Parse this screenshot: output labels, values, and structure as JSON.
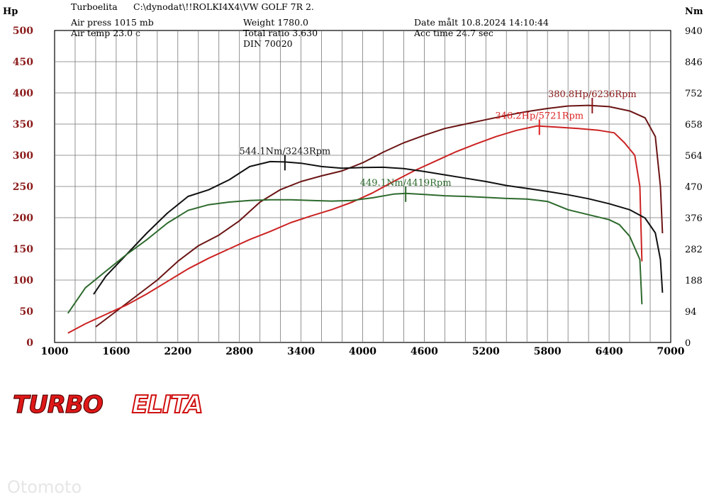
{
  "header": {
    "app_name": "Turboelita",
    "file_path": "C:\\dynodat\\!!ROLKI4X4\\VW GOLF 7R 2.",
    "air_press": "Air press  1015 mb",
    "air_temp": "Air temp  23.0 c",
    "weight": "Weight  1780.0",
    "total_ratio": "Total ratio 3.630",
    "din": "DIN 70020",
    "date": "Date målt 10.8.2024 14:10:44",
    "acc_time": "Acc time  24.7 sec"
  },
  "logo": {
    "part1": "TURBO",
    "part2": "ELITA"
  },
  "watermark": "Otomoto",
  "chart_data": {
    "type": "line",
    "xlabel": "",
    "ylabel_left": "Hp",
    "ylabel_right": "Nm",
    "xlim": [
      1000,
      7000
    ],
    "ylim_left": [
      0,
      500
    ],
    "ylim_right": [
      0,
      940
    ],
    "x_ticks": [
      "1000",
      "1600",
      "2200",
      "2800",
      "3400",
      "4000",
      "4600",
      "5200",
      "5800",
      "6400",
      "7000"
    ],
    "y_ticks_left": [
      "0",
      "50",
      "100",
      "150",
      "200",
      "250",
      "300",
      "350",
      "400",
      "450",
      "500"
    ],
    "y_ticks_right": [
      "0",
      "94",
      "188",
      "282",
      "376",
      "470",
      "564",
      "658",
      "752",
      "846",
      "940"
    ],
    "grid": true,
    "series": [
      {
        "name": "",
        "axis": "left",
        "color": "#6b1414",
        "points": [
          [
            1400,
            25
          ],
          [
            1600,
            50
          ],
          [
            1800,
            75
          ],
          [
            2000,
            100
          ],
          [
            2200,
            130
          ],
          [
            2400,
            155
          ],
          [
            2600,
            172
          ],
          [
            2800,
            195
          ],
          [
            3000,
            225
          ],
          [
            3200,
            245
          ],
          [
            3400,
            258
          ],
          [
            3600,
            267
          ],
          [
            3800,
            275
          ],
          [
            4000,
            288
          ],
          [
            4200,
            305
          ],
          [
            4400,
            320
          ],
          [
            4600,
            332
          ],
          [
            4800,
            343
          ],
          [
            5000,
            350
          ],
          [
            5200,
            357
          ],
          [
            5400,
            364
          ],
          [
            5600,
            370
          ],
          [
            5800,
            375
          ],
          [
            6000,
            379
          ],
          [
            6200,
            380
          ],
          [
            6400,
            378
          ],
          [
            6600,
            371
          ],
          [
            6750,
            360
          ],
          [
            6850,
            330
          ],
          [
            6900,
            250
          ],
          [
            6920,
            175
          ]
        ]
      },
      {
        "name": "",
        "axis": "left",
        "color": "#cc2222",
        "points": [
          [
            1130,
            15
          ],
          [
            1300,
            30
          ],
          [
            1500,
            45
          ],
          [
            1700,
            60
          ],
          [
            1900,
            78
          ],
          [
            2100,
            98
          ],
          [
            2300,
            118
          ],
          [
            2500,
            135
          ],
          [
            2700,
            150
          ],
          [
            2900,
            165
          ],
          [
            3100,
            178
          ],
          [
            3300,
            192
          ],
          [
            3500,
            203
          ],
          [
            3700,
            213
          ],
          [
            3900,
            225
          ],
          [
            4100,
            240
          ],
          [
            4300,
            258
          ],
          [
            4500,
            275
          ],
          [
            4700,
            290
          ],
          [
            4900,
            305
          ],
          [
            5100,
            318
          ],
          [
            5300,
            330
          ],
          [
            5500,
            340
          ],
          [
            5700,
            347
          ],
          [
            5900,
            345
          ],
          [
            6100,
            343
          ],
          [
            6300,
            340
          ],
          [
            6450,
            336
          ],
          [
            6550,
            320
          ],
          [
            6650,
            300
          ],
          [
            6700,
            250
          ],
          [
            6720,
            130
          ]
        ]
      },
      {
        "name": "",
        "axis": "right",
        "color": "#111111",
        "points": [
          [
            1380,
            145
          ],
          [
            1500,
            200
          ],
          [
            1700,
            265
          ],
          [
            1900,
            330
          ],
          [
            2100,
            390
          ],
          [
            2300,
            440
          ],
          [
            2500,
            460
          ],
          [
            2700,
            490
          ],
          [
            2900,
            530
          ],
          [
            3100,
            545
          ],
          [
            3243,
            544
          ],
          [
            3400,
            540
          ],
          [
            3600,
            530
          ],
          [
            3800,
            525
          ],
          [
            4000,
            527
          ],
          [
            4200,
            528
          ],
          [
            4400,
            524
          ],
          [
            4600,
            515
          ],
          [
            4800,
            505
          ],
          [
            5000,
            495
          ],
          [
            5200,
            485
          ],
          [
            5400,
            473
          ],
          [
            5600,
            464
          ],
          [
            5800,
            455
          ],
          [
            6000,
            445
          ],
          [
            6200,
            433
          ],
          [
            6400,
            418
          ],
          [
            6600,
            400
          ],
          [
            6750,
            375
          ],
          [
            6850,
            330
          ],
          [
            6900,
            250
          ],
          [
            6920,
            150
          ]
        ]
      },
      {
        "name": "",
        "axis": "right",
        "color": "#2d6a2d",
        "points": [
          [
            1130,
            88
          ],
          [
            1300,
            165
          ],
          [
            1500,
            215
          ],
          [
            1700,
            265
          ],
          [
            1900,
            310
          ],
          [
            2100,
            360
          ],
          [
            2300,
            398
          ],
          [
            2500,
            415
          ],
          [
            2700,
            423
          ],
          [
            2900,
            428
          ],
          [
            3100,
            430
          ],
          [
            3300,
            430
          ],
          [
            3500,
            428
          ],
          [
            3700,
            426
          ],
          [
            3900,
            428
          ],
          [
            4100,
            436
          ],
          [
            4300,
            447
          ],
          [
            4419,
            449
          ],
          [
            4600,
            446
          ],
          [
            4800,
            442
          ],
          [
            5000,
            440
          ],
          [
            5200,
            437
          ],
          [
            5400,
            434
          ],
          [
            5600,
            432
          ],
          [
            5800,
            425
          ],
          [
            6000,
            400
          ],
          [
            6200,
            385
          ],
          [
            6400,
            370
          ],
          [
            6500,
            355
          ],
          [
            6600,
            320
          ],
          [
            6700,
            250
          ],
          [
            6720,
            115
          ]
        ]
      }
    ],
    "peak_labels": [
      {
        "text": "380.8Hp/6236Rpm",
        "x": 6236,
        "y": 380.8,
        "axis": "left",
        "color": "#8b1a1a"
      },
      {
        "text": "346.2Hp/5721Rpm",
        "x": 5721,
        "y": 346.2,
        "axis": "left",
        "color": "#dd2222"
      },
      {
        "text": "544.1Nm/3243Rpm",
        "x": 3243,
        "y": 544.1,
        "axis": "right",
        "color": "#111111"
      },
      {
        "text": "449.1Nm/4419Rpm",
        "x": 4419,
        "y": 449.1,
        "axis": "right",
        "color": "#2d6a2d"
      }
    ]
  }
}
